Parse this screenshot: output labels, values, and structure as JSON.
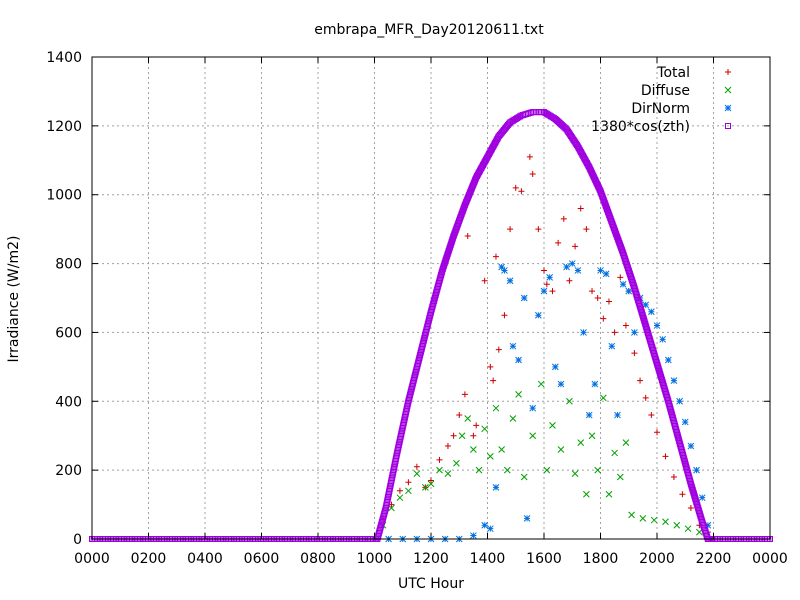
{
  "chart_data": {
    "type": "scatter",
    "title": "embrapa_MFR_Day20120611.txt",
    "xlabel": "UTC Hour",
    "ylabel": "Irradiance (W/m2)",
    "xlim": [
      0,
      24
    ],
    "ylim": [
      0,
      1400
    ],
    "xticks": [
      {
        "value": 0,
        "label": "0000"
      },
      {
        "value": 2,
        "label": "0200"
      },
      {
        "value": 4,
        "label": "0400"
      },
      {
        "value": 6,
        "label": "0600"
      },
      {
        "value": 8,
        "label": "0800"
      },
      {
        "value": 10,
        "label": "1000"
      },
      {
        "value": 12,
        "label": "1200"
      },
      {
        "value": 14,
        "label": "1400"
      },
      {
        "value": 16,
        "label": "1600"
      },
      {
        "value": 18,
        "label": "1800"
      },
      {
        "value": 20,
        "label": "2000"
      },
      {
        "value": 22,
        "label": "2200"
      },
      {
        "value": 24,
        "label": "0000"
      }
    ],
    "yticks": [
      0,
      200,
      400,
      600,
      800,
      1000,
      1200,
      1400
    ],
    "grid": true,
    "legend_position": "top-right",
    "series": [
      {
        "name": "Total",
        "marker": "plus",
        "color": "#cc0000",
        "points": [
          [
            10.3,
            60
          ],
          [
            10.6,
            100
          ],
          [
            10.9,
            140
          ],
          [
            11.2,
            165
          ],
          [
            11.5,
            210
          ],
          [
            11.8,
            150
          ],
          [
            12.0,
            170
          ],
          [
            12.3,
            230
          ],
          [
            12.6,
            270
          ],
          [
            12.8,
            300
          ],
          [
            13.0,
            360
          ],
          [
            13.2,
            420
          ],
          [
            13.3,
            880
          ],
          [
            13.5,
            300
          ],
          [
            13.6,
            330
          ],
          [
            13.9,
            750
          ],
          [
            14.1,
            500
          ],
          [
            14.2,
            460
          ],
          [
            14.3,
            820
          ],
          [
            14.4,
            550
          ],
          [
            14.6,
            650
          ],
          [
            14.8,
            900
          ],
          [
            15.0,
            1020
          ],
          [
            15.2,
            1010
          ],
          [
            15.5,
            1110
          ],
          [
            15.6,
            1060
          ],
          [
            15.8,
            900
          ],
          [
            16.0,
            780
          ],
          [
            16.1,
            740
          ],
          [
            16.3,
            720
          ],
          [
            16.5,
            860
          ],
          [
            16.7,
            930
          ],
          [
            16.9,
            750
          ],
          [
            17.1,
            850
          ],
          [
            17.3,
            960
          ],
          [
            17.5,
            900
          ],
          [
            17.7,
            720
          ],
          [
            17.9,
            700
          ],
          [
            18.1,
            640
          ],
          [
            18.3,
            690
          ],
          [
            18.5,
            600
          ],
          [
            18.7,
            760
          ],
          [
            18.9,
            620
          ],
          [
            19.0,
            720
          ],
          [
            19.2,
            540
          ],
          [
            19.4,
            460
          ],
          [
            19.6,
            410
          ],
          [
            19.8,
            360
          ],
          [
            20.0,
            310
          ],
          [
            20.3,
            240
          ],
          [
            20.6,
            180
          ],
          [
            20.9,
            130
          ],
          [
            21.2,
            90
          ],
          [
            21.5,
            40
          ],
          [
            21.8,
            20
          ]
        ]
      },
      {
        "name": "Diffuse",
        "marker": "x",
        "color": "#00a000",
        "points": [
          [
            10.3,
            40
          ],
          [
            10.6,
            90
          ],
          [
            10.9,
            120
          ],
          [
            11.2,
            140
          ],
          [
            11.5,
            190
          ],
          [
            11.8,
            150
          ],
          [
            12.0,
            160
          ],
          [
            12.3,
            200
          ],
          [
            12.6,
            190
          ],
          [
            12.9,
            220
          ],
          [
            13.1,
            300
          ],
          [
            13.3,
            350
          ],
          [
            13.5,
            260
          ],
          [
            13.7,
            200
          ],
          [
            13.9,
            320
          ],
          [
            14.1,
            240
          ],
          [
            14.3,
            380
          ],
          [
            14.5,
            260
          ],
          [
            14.7,
            200
          ],
          [
            14.9,
            350
          ],
          [
            15.1,
            420
          ],
          [
            15.3,
            180
          ],
          [
            15.6,
            300
          ],
          [
            15.9,
            450
          ],
          [
            16.1,
            200
          ],
          [
            16.3,
            330
          ],
          [
            16.6,
            260
          ],
          [
            16.9,
            400
          ],
          [
            17.1,
            190
          ],
          [
            17.3,
            280
          ],
          [
            17.5,
            130
          ],
          [
            17.7,
            300
          ],
          [
            17.9,
            200
          ],
          [
            18.1,
            410
          ],
          [
            18.3,
            130
          ],
          [
            18.5,
            250
          ],
          [
            18.7,
            180
          ],
          [
            18.9,
            280
          ],
          [
            19.1,
            70
          ],
          [
            19.5,
            60
          ],
          [
            19.9,
            55
          ],
          [
            20.3,
            50
          ],
          [
            20.7,
            40
          ],
          [
            21.1,
            30
          ],
          [
            21.5,
            20
          ]
        ]
      },
      {
        "name": "DirNorm",
        "marker": "star",
        "color": "#0070e0",
        "points": [
          [
            10.5,
            0
          ],
          [
            11.0,
            0
          ],
          [
            11.5,
            0
          ],
          [
            12.0,
            0
          ],
          [
            12.5,
            0
          ],
          [
            13.0,
            0
          ],
          [
            13.5,
            10
          ],
          [
            13.9,
            40
          ],
          [
            14.1,
            30
          ],
          [
            14.3,
            150
          ],
          [
            14.5,
            790
          ],
          [
            14.6,
            780
          ],
          [
            14.8,
            750
          ],
          [
            14.9,
            560
          ],
          [
            15.1,
            520
          ],
          [
            15.3,
            700
          ],
          [
            15.4,
            60
          ],
          [
            15.6,
            380
          ],
          [
            15.8,
            650
          ],
          [
            16.0,
            720
          ],
          [
            16.2,
            760
          ],
          [
            16.4,
            500
          ],
          [
            16.6,
            450
          ],
          [
            16.8,
            790
          ],
          [
            17.0,
            800
          ],
          [
            17.2,
            780
          ],
          [
            17.4,
            600
          ],
          [
            17.6,
            360
          ],
          [
            17.8,
            450
          ],
          [
            18.0,
            780
          ],
          [
            18.2,
            770
          ],
          [
            18.4,
            560
          ],
          [
            18.6,
            360
          ],
          [
            18.8,
            740
          ],
          [
            19.0,
            720
          ],
          [
            19.2,
            600
          ],
          [
            19.4,
            700
          ],
          [
            19.6,
            680
          ],
          [
            19.8,
            660
          ],
          [
            20.0,
            620
          ],
          [
            20.2,
            580
          ],
          [
            20.4,
            520
          ],
          [
            20.6,
            460
          ],
          [
            20.8,
            400
          ],
          [
            21.0,
            340
          ],
          [
            21.2,
            270
          ],
          [
            21.4,
            200
          ],
          [
            21.6,
            120
          ],
          [
            21.8,
            40
          ]
        ]
      },
      {
        "name": "1380*cos(zth)",
        "marker": "square",
        "color": "#a000e0",
        "points": [
          [
            0,
            0
          ],
          [
            10.0,
            0
          ],
          [
            10.1,
            0
          ],
          [
            10.4,
            90
          ],
          [
            10.8,
            250
          ],
          [
            11.2,
            400
          ],
          [
            11.6,
            530
          ],
          [
            12.0,
            660
          ],
          [
            12.4,
            780
          ],
          [
            12.8,
            880
          ],
          [
            13.2,
            970
          ],
          [
            13.6,
            1050
          ],
          [
            14.0,
            1110
          ],
          [
            14.4,
            1170
          ],
          [
            14.8,
            1210
          ],
          [
            15.2,
            1230
          ],
          [
            15.6,
            1240
          ],
          [
            16.0,
            1240
          ],
          [
            16.4,
            1220
          ],
          [
            16.8,
            1190
          ],
          [
            17.2,
            1140
          ],
          [
            17.6,
            1080
          ],
          [
            18.0,
            1010
          ],
          [
            18.4,
            920
          ],
          [
            18.8,
            830
          ],
          [
            19.2,
            730
          ],
          [
            19.6,
            620
          ],
          [
            20.0,
            510
          ],
          [
            20.4,
            400
          ],
          [
            20.8,
            280
          ],
          [
            21.2,
            160
          ],
          [
            21.6,
            50
          ],
          [
            21.8,
            0
          ],
          [
            22.0,
            0
          ],
          [
            24.0,
            0
          ]
        ]
      }
    ]
  }
}
